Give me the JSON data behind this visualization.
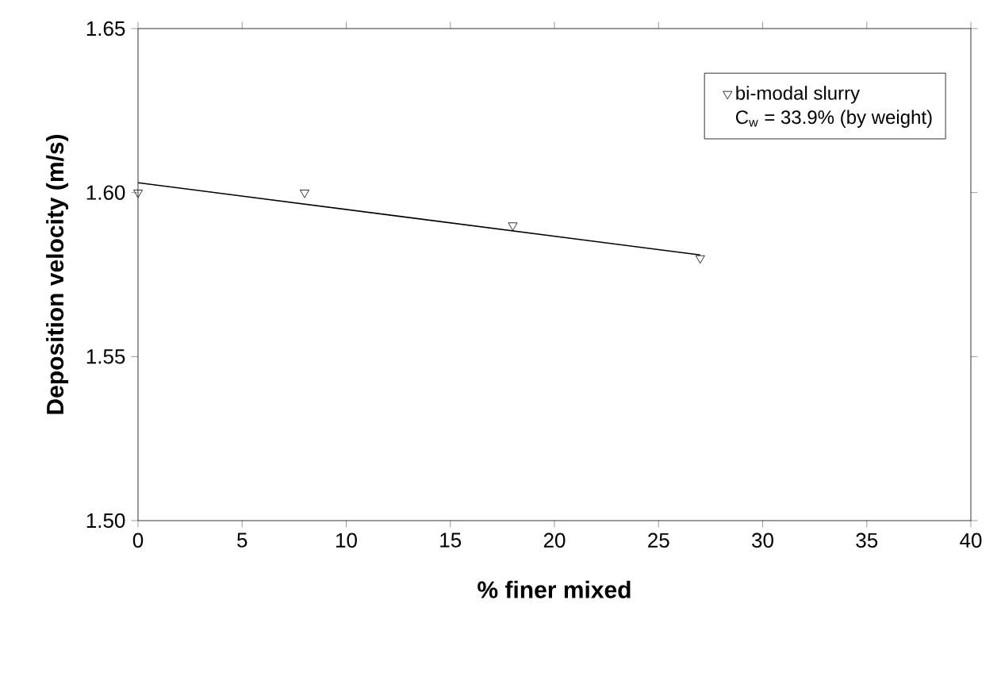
{
  "chart_data": {
    "type": "scatter",
    "xlabel": "% finer mixed",
    "ylabel": "Deposition velocity (m/s)",
    "xlim": [
      0,
      40
    ],
    "xticks": [
      0,
      5,
      10,
      15,
      20,
      25,
      30,
      35,
      40
    ],
    "ylim": [
      1.5,
      1.65
    ],
    "yticks": [
      {
        "value": 1.5,
        "label": "1.50"
      },
      {
        "value": 1.55,
        "label": "1.55"
      },
      {
        "value": 1.6,
        "label": "1.60"
      },
      {
        "value": 1.65,
        "label": "1.65"
      }
    ],
    "x": [
      0,
      8,
      18,
      27
    ],
    "series": [
      {
        "name": "bi-modal slurry",
        "color": "#000000",
        "marker": "triangle",
        "values": [
          1.6,
          1.6,
          1.59,
          1.58
        ]
      },
      {
        "type": "line",
        "color": "#000000",
        "x": [
          0,
          27
        ],
        "values": [
          1.603,
          1.581
        ]
      }
    ],
    "annotations": [
      "C$_{w}$ = 33.9% (by weight)"
    ],
    "legend": "top right",
    "grid": false
  }
}
